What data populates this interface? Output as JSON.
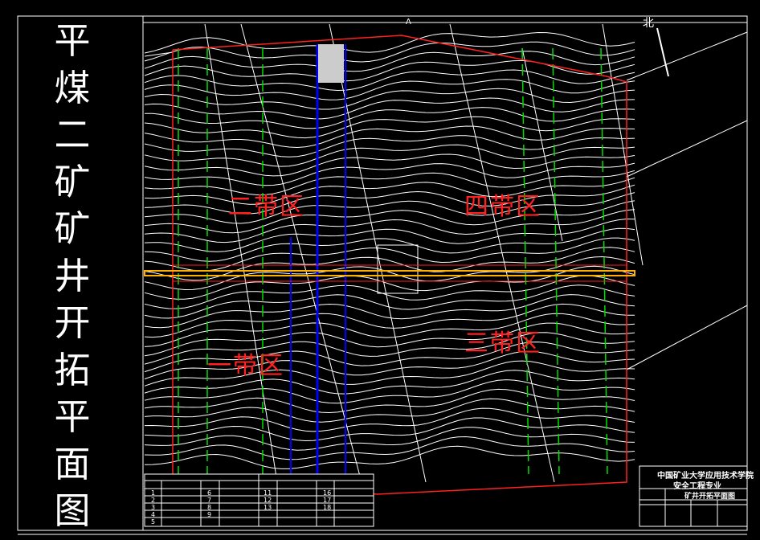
{
  "drawing": {
    "title_chars": [
      "平",
      "煤",
      "二",
      "矿",
      "矿",
      "井",
      "开",
      "拓",
      "平",
      "面",
      "图"
    ],
    "zones": [
      {
        "id": "zone-2",
        "label": "二带区"
      },
      {
        "id": "zone-1",
        "label": "一带区"
      },
      {
        "id": "zone-4",
        "label": "四带区"
      },
      {
        "id": "zone-3",
        "label": "三带区"
      }
    ],
    "north_label": "北",
    "section_marker": "A",
    "colors": {
      "background": "#000000",
      "contour": "#ffffff",
      "boundary": "#ff2020",
      "roadway_main": "#ffb000",
      "shaft_lines": "#0000ff",
      "panel_lines": "#00dd00"
    }
  },
  "title_block": {
    "institution": "中国矿业大学应用技术学院",
    "major": "安全工程专业",
    "drawing_name": "矿井开拓平面图"
  },
  "legend_table": {
    "numbers_col1": [
      "1",
      "2",
      "3",
      "4",
      "5"
    ],
    "numbers_col2": [
      "6",
      "7",
      "8",
      "9"
    ],
    "numbers_col3": [
      "11",
      "12",
      "13"
    ],
    "numbers_col4": [
      "16",
      "17",
      "18"
    ]
  }
}
